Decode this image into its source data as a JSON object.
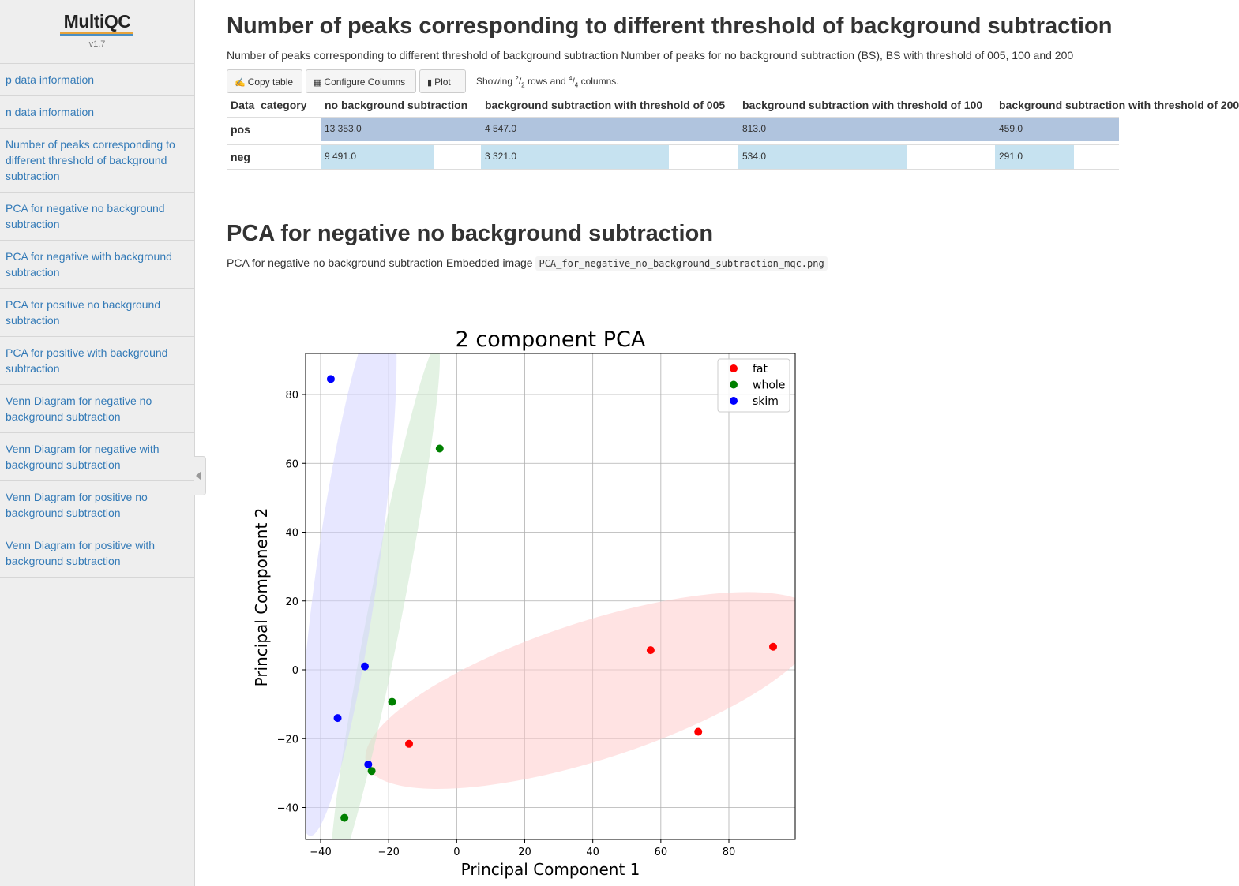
{
  "sidebar": {
    "logo_name": "MultiQC",
    "version": "v1.7",
    "items": [
      {
        "label": "p data information"
      },
      {
        "label": "n data information"
      },
      {
        "label": "Number of peaks corresponding to different threshold of background subtraction"
      },
      {
        "label": "PCA for negative no background subtraction"
      },
      {
        "label": "PCA for negative with background subtraction"
      },
      {
        "label": "PCA for positive no background subtraction"
      },
      {
        "label": "PCA for positive with background subtraction"
      },
      {
        "label": "Venn Diagram for negative no background subtraction"
      },
      {
        "label": "Venn Diagram for negative with background subtraction"
      },
      {
        "label": "Venn Diagram for positive no background subtraction"
      },
      {
        "label": "Venn Diagram for positive with background subtraction"
      }
    ]
  },
  "section1": {
    "title": "Number of peaks corresponding to different threshold of background subtraction",
    "description": "Number of peaks corresponding to different threshold of background subtraction Number of peaks for no background subtraction (BS), BS with threshold of 005, 100 and 200",
    "toolbar": {
      "copy_label": "Copy table",
      "configure_label": "Configure Columns",
      "plot_label": "Plot",
      "showing_prefix": "Showing ",
      "rows_num": "2",
      "rows_den": "2",
      "rows_text": " rows and ",
      "cols_num": "4",
      "cols_den": "4",
      "cols_text": " columns."
    },
    "table": {
      "headers": [
        "Data_category",
        "no background subtraction",
        "background subtraction with threshold of 005",
        "background subtraction with threshold of 100",
        "background subtraction with threshold of 200"
      ],
      "rows": [
        {
          "name": "pos",
          "values": [
            "13 353.0",
            "4 547.0",
            "813.0",
            "459.0"
          ],
          "fractions": [
            1.0,
            1.0,
            1.0,
            1.0
          ]
        },
        {
          "name": "neg",
          "values": [
            "9 491.0",
            "3 321.0",
            "534.0",
            "291.0"
          ],
          "fractions": [
            0.711,
            0.73,
            0.657,
            0.634
          ]
        }
      ],
      "colors": {
        "pos_bar": "#b0c4de",
        "neg_bar": "#c6e2f0"
      }
    }
  },
  "section2": {
    "title": "PCA for negative no background subtraction",
    "description_prefix": "PCA for negative no background subtraction Embedded image",
    "filename": "PCA_for_negative_no_background_subtraction_mqc.png"
  },
  "chart_data": {
    "type": "scatter",
    "title": "2 component PCA",
    "xlabel": "Principal Component 1",
    "ylabel": "Principal Component 2",
    "xlim": [
      -44,
      100
    ],
    "ylim": [
      -49,
      92
    ],
    "xticks": [
      -40,
      -20,
      0,
      20,
      40,
      60,
      80
    ],
    "yticks": [
      -40,
      -20,
      0,
      20,
      40,
      60,
      80
    ],
    "grid": true,
    "legend_position": "top-right",
    "series": [
      {
        "name": "fat",
        "color": "#ff0000",
        "points": [
          [
            57,
            5.7
          ],
          [
            93,
            6.7
          ],
          [
            71,
            -18
          ],
          [
            -14,
            -21.5
          ]
        ],
        "ellipse": {
          "cx": 40,
          "cy": -6,
          "rx": 70,
          "ry": 20,
          "angle_deg": 18,
          "fill": "#ffcccc"
        }
      },
      {
        "name": "whole",
        "color": "#008000",
        "points": [
          [
            -5,
            64.3
          ],
          [
            -19,
            -9.3
          ],
          [
            -25,
            -29.4
          ],
          [
            -33,
            -43
          ]
        ],
        "ellipse": {
          "cx": -21,
          "cy": 17,
          "rx": 80,
          "ry": 5,
          "angle_deg": 79,
          "fill": "#cce8cc"
        }
      },
      {
        "name": "skim",
        "color": "#0000ff",
        "points": [
          [
            -37,
            84.5
          ],
          [
            -27,
            1
          ],
          [
            -35,
            -14
          ],
          [
            -26,
            -27.5
          ]
        ],
        "ellipse": {
          "cx": -32,
          "cy": 30,
          "rx": 80,
          "ry": 9,
          "angle_deg": 82,
          "fill": "#d3d3ff"
        }
      }
    ]
  }
}
